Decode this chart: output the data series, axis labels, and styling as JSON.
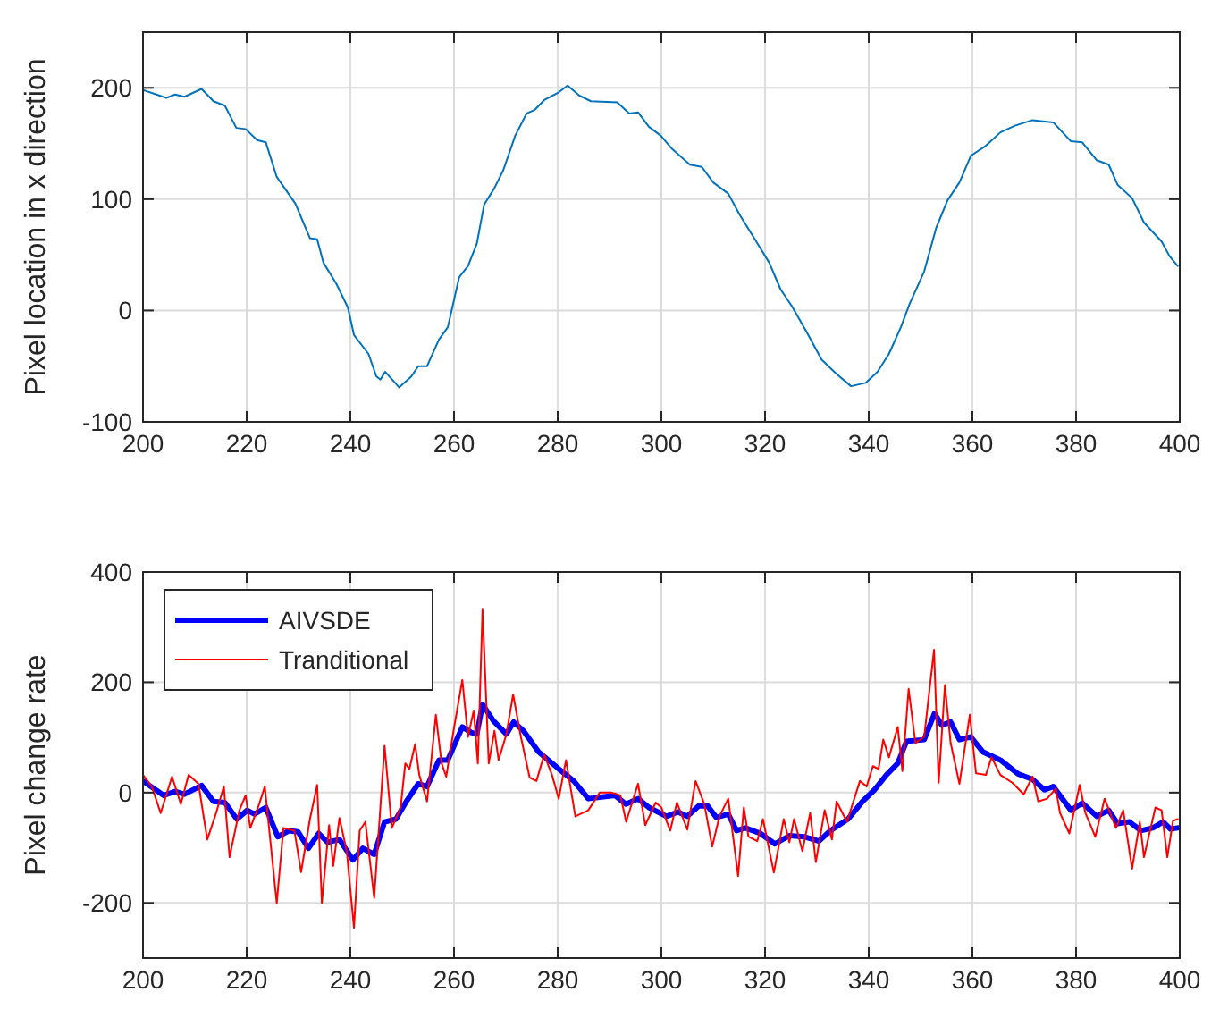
{
  "chart_data": [
    {
      "type": "line",
      "ylabel": "Pixel location in x direction",
      "xlim": [
        200,
        400
      ],
      "xticks": [
        200,
        220,
        240,
        260,
        280,
        300,
        320,
        340,
        360,
        380,
        400
      ],
      "ylim": [
        -100,
        250
      ],
      "yticks": [
        -100,
        0,
        100,
        200
      ],
      "grid": true,
      "series": [
        {
          "color": "#0072bd",
          "x": [
            200,
            204.5,
            206.2,
            208,
            211.3,
            213.6,
            215.8,
            218,
            219.8,
            222,
            223.7,
            225.8,
            229.4,
            232.2,
            233.6,
            234.8,
            237.3,
            239.5,
            240.7,
            243.5,
            245,
            245.8,
            246.7,
            249.4,
            251.8,
            253.1,
            254.8,
            257.1,
            258.8,
            261,
            262.7,
            264.4,
            265.8,
            267.8,
            269.5,
            271.8,
            274,
            275.5,
            277.4,
            280.2,
            281.9,
            284.2,
            286.4,
            291.5,
            293.8,
            295.5,
            297.6,
            299.9,
            302.1,
            305.5,
            307.8,
            310,
            312.9,
            315.1,
            319.1,
            320.8,
            323,
            325.3,
            328.1,
            330.9,
            333.8,
            336.6,
            339.4,
            341.7,
            343.9,
            346.2,
            347.9,
            350.7,
            353,
            355.2,
            357.5,
            359.7,
            362.6,
            365.4,
            368.2,
            371.6,
            375.6,
            379,
            381.2,
            384,
            386.3,
            388,
            390.8,
            393.1,
            396.5,
            398,
            399.6
          ],
          "values": [
            198,
            191,
            194,
            192,
            199,
            188,
            184,
            164,
            163,
            153,
            151,
            120,
            96,
            65,
            64,
            43,
            24,
            3,
            -22,
            -39,
            -59,
            -62,
            -55,
            -69,
            -59,
            -50,
            -50,
            -26,
            -15,
            30,
            40,
            60,
            95,
            110,
            126,
            157,
            177,
            180,
            189,
            196,
            202,
            193,
            188,
            187,
            177,
            178,
            165,
            157,
            145,
            131,
            129,
            115,
            105,
            86,
            56,
            43,
            19,
            3,
            -20,
            -44,
            -57,
            -68,
            -65,
            -55,
            -39,
            -15,
            6,
            35,
            74,
            99,
            115,
            139,
            148,
            160,
            166,
            171,
            169,
            152,
            151,
            135,
            131,
            113,
            101,
            79,
            62,
            49,
            40
          ]
        }
      ]
    },
    {
      "type": "line",
      "ylabel": "Pixel change rate",
      "xlim": [
        200,
        400
      ],
      "xticks": [
        200,
        220,
        240,
        260,
        280,
        300,
        320,
        340,
        360,
        380,
        400
      ],
      "ylim": [
        -300,
        400
      ],
      "yticks": [
        -200,
        0,
        200,
        400
      ],
      "grid": true,
      "legend": "top left",
      "series": [
        {
          "name": "AIVSDE",
          "color": "#0000ff",
          "x": [
            200,
            204,
            206.2,
            208,
            211.3,
            213.6,
            215.8,
            218.1,
            220.1,
            221.5,
            223.7,
            226,
            228.2,
            229.9,
            231.9,
            233.9,
            235.6,
            237.9,
            240.5,
            242.4,
            244.6,
            246.6,
            248.8,
            250.8,
            253.1,
            254.8,
            257.1,
            258.8,
            261.6,
            263.3,
            264.4,
            265.5,
            267.6,
            270.1,
            271.5,
            273.4,
            276.3,
            280.2,
            283.1,
            285.9,
            291,
            293.2,
            295.5,
            297.6,
            301,
            303.2,
            305,
            307.2,
            308.9,
            310.6,
            312.9,
            314.5,
            316.2,
            319.1,
            321.9,
            324.7,
            327.5,
            330.4,
            332.6,
            336,
            338.8,
            341.1,
            343.4,
            345.6,
            347.3,
            350.7,
            352.7,
            354.1,
            355.8,
            357.5,
            359.7,
            362,
            365.4,
            368.8,
            371.6,
            373.9,
            375.6,
            379,
            381.2,
            384,
            386.3,
            388,
            390.3,
            392.5,
            394.8,
            396.8,
            398.2,
            399.6
          ],
          "values": [
            21,
            -5,
            2,
            -3,
            13,
            -16,
            -18,
            -48,
            -32,
            -39,
            -27,
            -80,
            -69,
            -71,
            -101,
            -74,
            -90,
            -85,
            -122,
            -101,
            -112,
            -53,
            -48,
            -16,
            16,
            11,
            59,
            59,
            119,
            109,
            106,
            160,
            130,
            106,
            128,
            112,
            74,
            43,
            21,
            -11,
            -5,
            -21,
            -11,
            -27,
            -43,
            -35,
            -43,
            -24,
            -24,
            -45,
            -39,
            -69,
            -64,
            -74,
            -93,
            -78,
            -80,
            -88,
            -69,
            -48,
            -16,
            5,
            32,
            53,
            93,
            96,
            144,
            122,
            128,
            96,
            101,
            74,
            59,
            34,
            24,
            5,
            11,
            -32,
            -19,
            -43,
            -32,
            -56,
            -53,
            -69,
            -64,
            -53,
            -66,
            -64
          ]
        },
        {
          "name": "Tranditional",
          "color": "#ff0000",
          "x": [
            200,
            201.7,
            203.4,
            205.6,
            207.3,
            208.8,
            210.7,
            212.4,
            214.1,
            215.6,
            216.7,
            218.6,
            219.8,
            220.7,
            222.4,
            223.5,
            225.8,
            227.1,
            229.2,
            230.5,
            232.2,
            233.6,
            234.5,
            235.9,
            236.7,
            237.9,
            239.3,
            240.7,
            241.8,
            242.9,
            244.6,
            246.6,
            248,
            249.7,
            250.6,
            251.4,
            252.5,
            253.3,
            254.8,
            256.5,
            257.6,
            258.5,
            259.9,
            261.6,
            262.7,
            263.8,
            264.6,
            265.5,
            266.7,
            267.8,
            268.6,
            270.1,
            271.4,
            272.9,
            274.6,
            275.9,
            277.4,
            278.9,
            280.2,
            281.6,
            283.4,
            285.9,
            288.1,
            290.4,
            292.1,
            293.2,
            295.5,
            296.9,
            298.9,
            300,
            301.7,
            303,
            305,
            306.6,
            308.3,
            309.8,
            311.2,
            312.9,
            314.8,
            315.9,
            316.8,
            318.5,
            319.6,
            321.7,
            323.6,
            324.7,
            325.6,
            327.2,
            328.7,
            329.8,
            331.5,
            332.9,
            333.8,
            335.8,
            338.3,
            339.6,
            340.8,
            341.9,
            342.8,
            343.9,
            345.6,
            346.5,
            347.7,
            349,
            350.7,
            352.6,
            353.5,
            354.7,
            355.8,
            357.5,
            359.5,
            360.7,
            362.6,
            363.7,
            365.4,
            367.7,
            369.9,
            371.6,
            372.7,
            374.4,
            376.1,
            376.9,
            378.7,
            380.7,
            381.8,
            383.7,
            385.5,
            387.7,
            389.1,
            390.8,
            392.3,
            393.1,
            395.3,
            396.5,
            397.6,
            398.7,
            399.6
          ],
          "values": [
            32,
            11,
            -37,
            29,
            -21,
            32,
            16,
            -85,
            -37,
            11,
            -117,
            -32,
            -5,
            -64,
            -21,
            11,
            -200,
            -64,
            -69,
            -144,
            -48,
            14,
            -200,
            -59,
            -133,
            -46,
            -106,
            -245,
            -69,
            -53,
            -191,
            85,
            -64,
            -27,
            53,
            43,
            88,
            32,
            -16,
            141,
            53,
            29,
            112,
            204,
            101,
            149,
            53,
            333,
            53,
            112,
            59,
            106,
            178,
            101,
            27,
            21,
            69,
            32,
            -11,
            59,
            -43,
            -32,
            0,
            0,
            -5,
            -53,
            16,
            -59,
            -18,
            -27,
            -69,
            -18,
            -67,
            21,
            -21,
            -98,
            -43,
            -11,
            -151,
            -27,
            -80,
            -88,
            -48,
            -145,
            -48,
            -90,
            -48,
            -106,
            -37,
            -126,
            -32,
            -85,
            -16,
            -53,
            21,
            11,
            48,
            43,
            96,
            64,
            119,
            39,
            188,
            90,
            101,
            259,
            18,
            195,
            90,
            16,
            141,
            35,
            32,
            64,
            32,
            18,
            -3,
            29,
            -16,
            -11,
            7,
            -37,
            -74,
            14,
            -37,
            -80,
            -11,
            -64,
            -32,
            -138,
            -53,
            -117,
            -27,
            -32,
            -117,
            -51,
            -48
          ]
        }
      ]
    }
  ]
}
